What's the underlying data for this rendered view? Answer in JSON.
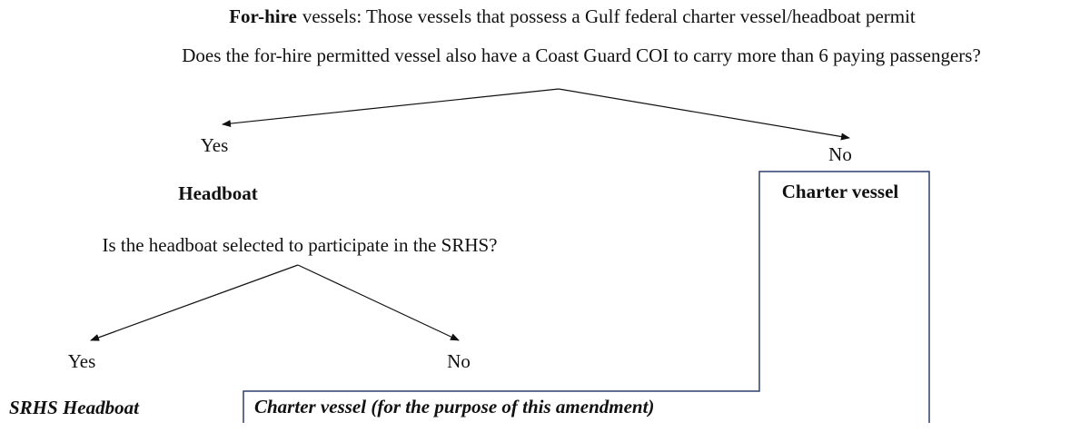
{
  "header": {
    "lead": "For-hire",
    "rest": "vessels: Those vessels that possess a Gulf federal charter vessel/headboat permit"
  },
  "question_1": {
    "text": "Does the for-hire permitted vessel also have a Coast Guard COI to carry more than 6 paying passengers?",
    "yes": "Yes",
    "no": "No"
  },
  "outcomes_1": {
    "yes": "Headboat",
    "no": "Charter vessel"
  },
  "question_2": {
    "text": "Is the headboat selected to participate in the SRHS?",
    "yes": "Yes",
    "no": "No"
  },
  "outcomes_2": {
    "yes": "SRHS Headboat",
    "no": "Charter vessel (for the purpose of this amendment)"
  }
}
